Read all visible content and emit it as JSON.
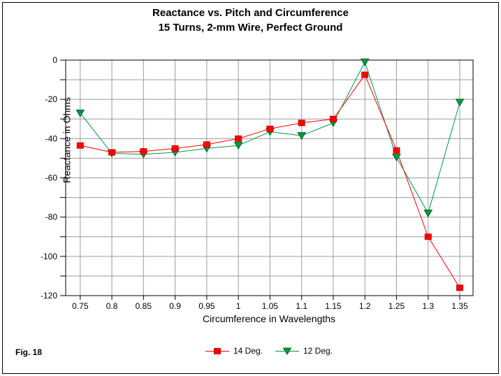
{
  "figure_label": "Fig. 18",
  "title": {
    "line1": "Reactance vs. Pitch and Circumference",
    "line2": "15 Turns, 2-mm Wire, Perfect Ground"
  },
  "chart_data": {
    "type": "line",
    "title": "Reactance vs. Pitch and Circumference",
    "subtitle": "15 Turns, 2-mm Wire, Perfect Ground",
    "xlabel": "Circumference in Wavelengths",
    "ylabel": "Reactance in Ohms",
    "x": [
      0.75,
      0.8,
      0.85,
      0.9,
      0.95,
      1,
      1.05,
      1.1,
      1.15,
      1.2,
      1.25,
      1.3,
      1.35
    ],
    "x_tick_labels": [
      "0.75",
      "0.8",
      "0.85",
      "0.9",
      "0.95",
      "1",
      "1.05",
      "1.1",
      "1.15",
      "1.2",
      "1.25",
      "1.3",
      "1.35"
    ],
    "y_ticks": [
      0,
      -20,
      -40,
      -60,
      -80,
      -100,
      -120
    ],
    "y_tick_labels": [
      "0",
      "-20",
      "-40",
      "-60",
      "-80",
      "-100",
      "-120"
    ],
    "y_grid_step": 10,
    "xlim": [
      0.727,
      1.371
    ],
    "ylim": [
      -120,
      0
    ],
    "grid": true,
    "gridline_color": "#9c9c9c",
    "legend_position": "bottom-center",
    "series": [
      {
        "name": "14 Deg.",
        "marker": "square",
        "color": "#ff0000",
        "marker_stroke": "#cc0000",
        "values": [
          -43.5,
          -47,
          -46.5,
          -45,
          -43,
          -40,
          -35,
          -32,
          -30,
          -7.5,
          -46,
          -90,
          -116
        ]
      },
      {
        "name": "12 Deg.",
        "marker": "triangle-down",
        "color": "#009944",
        "marker_stroke": "#006622",
        "values": [
          -27,
          -47.5,
          -48,
          -47,
          -45,
          -43.5,
          -36.5,
          -38.5,
          -32,
          -1,
          -49.5,
          -78,
          -21.5
        ]
      }
    ]
  }
}
